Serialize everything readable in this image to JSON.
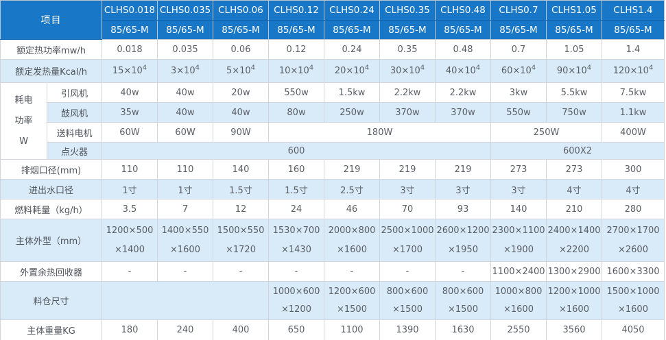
{
  "table": {
    "corner_label": "项目",
    "models": [
      "CLHS0.018",
      "CLHS0.035",
      "CLHS0.06",
      "CLHS0.12",
      "CLHS0.24",
      "CLHS0.35",
      "CLHS0.48",
      "CLHS0.7",
      "CLHS1.05",
      "CLHS1.4"
    ],
    "variant": "85/65-M",
    "rows": {
      "rated_power": {
        "label": "额定热功率mw/h",
        "values": [
          "0.018",
          "0.035",
          "0.06",
          "0.12",
          "0.24",
          "0.35",
          "0.48",
          "0.7",
          "1.05",
          "1.4"
        ]
      },
      "rated_heat": {
        "label": "额定发热量Kcal/h",
        "values": [
          {
            "m": "15×10",
            "e": "4"
          },
          {
            "m": "3×10",
            "e": "4"
          },
          {
            "m": "5×10",
            "e": "4"
          },
          {
            "m": "10×10",
            "e": "4"
          },
          {
            "m": "20×10",
            "e": "4"
          },
          {
            "m": "30×10",
            "e": "4"
          },
          {
            "m": "40×10",
            "e": "4"
          },
          {
            "m": "60×10",
            "e": "4"
          },
          {
            "m": "90×10",
            "e": "4"
          },
          {
            "m": "120×10",
            "e": "4"
          }
        ]
      },
      "power_group": {
        "label": "耗电\n功率\nW"
      },
      "induced_fan": {
        "label": "引风机",
        "values": [
          "40w",
          "40w",
          "20w",
          "550w",
          "1.5kw",
          "2.2kw",
          "2.2kw",
          "3kw",
          "5.5kw",
          "7.5kw"
        ]
      },
      "blower_fan": {
        "label": "鼓风机",
        "values": [
          "35w",
          "40w",
          "40w",
          "80w",
          "250w",
          "370w",
          "370w",
          "550w",
          "750w",
          "1.1kw"
        ]
      },
      "feed_motor": {
        "label": "送料电机",
        "values": [
          "60W",
          "60W",
          "90W",
          "180W",
          "250W",
          "400W"
        ]
      },
      "igniter": {
        "label": "点火器",
        "values": [
          "600",
          "600X2"
        ]
      },
      "flue_outlet": {
        "label": "排烟口径(mm)",
        "values": [
          "110",
          "110",
          "140",
          "160",
          "219",
          "219",
          "219",
          "273",
          "273",
          "300"
        ]
      },
      "water_port": {
        "label": "进出水口径",
        "values": [
          "1寸",
          "1寸",
          "1.5寸",
          "1.5寸",
          "2.5寸",
          "3寸",
          "3寸",
          "3寸",
          "4寸",
          "4寸"
        ]
      },
      "fuel_consumption": {
        "label": "燃料耗量（kg/h）",
        "values": [
          "3.5",
          "7",
          "12",
          "24",
          "46",
          "70",
          "93",
          "140",
          "210",
          "280"
        ]
      },
      "body_dimensions": {
        "label": "主体外型（mm）",
        "values": [
          "1200×500\n×1400",
          "1400×550\n×1600",
          "1500×550\n×1720",
          "1530×700\n×1430",
          "2000×800\n×1600",
          "2500×1000\n×1700",
          "2600×1200\n×1950",
          "2300×1100\n×1900",
          "2400×1400\n×2200",
          "2700×1700\n×2600"
        ]
      },
      "heat_recovery": {
        "label": "外置余热回收器",
        "values": [
          "-",
          "-",
          "-",
          "-",
          "-",
          "-",
          "-",
          "1100×2400",
          "1300×2900",
          "1600×3300"
        ]
      },
      "hopper_size": {
        "label": "料仓尺寸",
        "empty": "",
        "values": [
          "1000×600\n×1200",
          "1200×600\n×1500",
          "800×600\n×1500",
          "800×600\n×1500",
          "1000×800\n×1600",
          "1200×1000\n×1600",
          "1500×1000\n×1600"
        ]
      },
      "body_weight": {
        "label": "主体重量KG",
        "values": [
          "180",
          "240",
          "400",
          "650",
          "1100",
          "1390",
          "1630",
          "2550",
          "3560",
          "4050"
        ]
      }
    },
    "colors": {
      "header_bg": "#1877c6",
      "stripe_bg": "#d9eaf8",
      "header_text": "#ffffff"
    }
  }
}
